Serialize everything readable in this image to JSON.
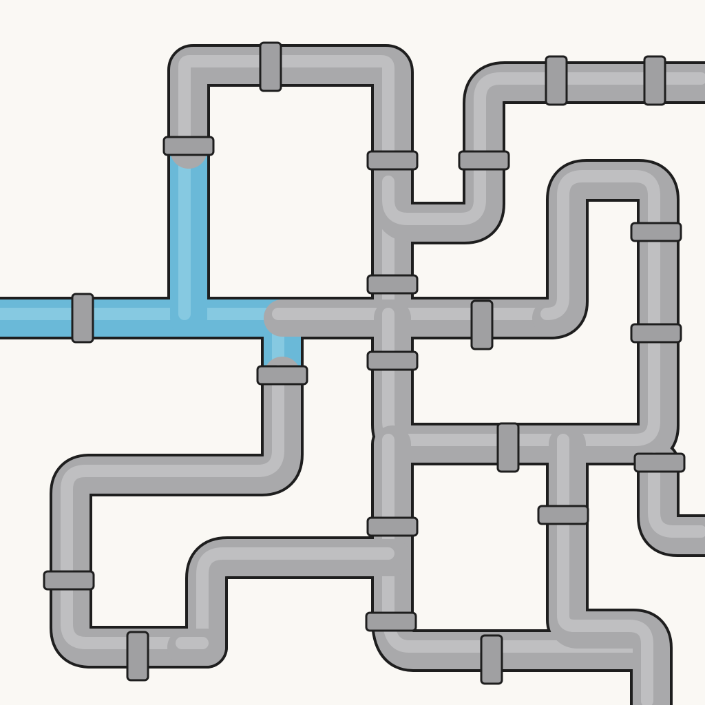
{
  "colors": {
    "background": "#faf8f4",
    "outline": "#1e1e1e",
    "empty_pipe": "#a9a9ab",
    "empty_pipe_shine": "#c9c9cb",
    "filled_pipe": "#6ab9d8",
    "filled_pipe_shine": "#93d0e6",
    "coupler": "#a0a0a2"
  },
  "icons": {
    "pipe": "pipe-segment-icon",
    "coupler": "pipe-coupler-icon"
  },
  "pipes": [
    {
      "name": "water-source-pipe",
      "state": "filled"
    },
    {
      "name": "vertical-feeder-pipe",
      "state": "filled"
    },
    {
      "name": "lower-elbow-pipe",
      "state": "filled"
    },
    {
      "name": "top-loop-pipe",
      "state": "empty"
    },
    {
      "name": "center-cross-pipe",
      "state": "empty"
    },
    {
      "name": "left-bottom-loop-pipe",
      "state": "empty"
    },
    {
      "name": "top-right-outlet-pipe",
      "state": "empty"
    },
    {
      "name": "right-loop-pipe",
      "state": "empty"
    },
    {
      "name": "middle-right-pipe",
      "state": "empty"
    },
    {
      "name": "bottom-right-pipe",
      "state": "empty"
    },
    {
      "name": "bottom-center-pipe",
      "state": "empty"
    },
    {
      "name": "bottom-outlet-pipe",
      "state": "empty"
    },
    {
      "name": "right-edge-outlet-pipe",
      "state": "empty"
    }
  ]
}
